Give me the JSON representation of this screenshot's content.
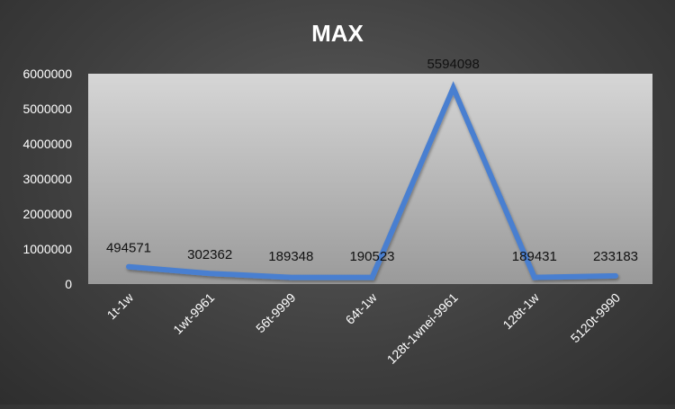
{
  "chart_data": {
    "type": "line",
    "title": "MAX",
    "categories": [
      "1t-1w",
      "1wt-9961",
      "56t-9999",
      "64t-1w",
      "128t-1wnei-9961",
      "128t-1w",
      "5120t-9990"
    ],
    "series": [
      {
        "values": [
          494571,
          302362,
          189348,
          190523,
          5594098,
          189431,
          233183
        ]
      }
    ],
    "ylim": [
      0,
      6000000
    ],
    "yticks": [
      0,
      1000000,
      2000000,
      3000000,
      4000000,
      5000000,
      6000000
    ],
    "grid": false,
    "legend": "none",
    "data_labels": true,
    "colors": {
      "line": "#4a7fd0",
      "plot_area_top": "#d6d6d6",
      "plot_area_bottom": "#9a9a9a",
      "axis_text": "#ffffff",
      "label_text": "#111111"
    }
  }
}
